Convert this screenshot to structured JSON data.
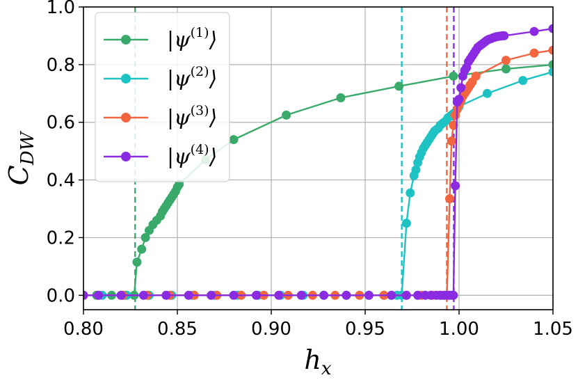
{
  "chart_data": {
    "type": "line",
    "xlabel": {
      "main": "h",
      "sub": "x"
    },
    "ylabel": {
      "main": "C",
      "sub": "DW"
    },
    "xlim": [
      0.8,
      1.05
    ],
    "ylim": [
      -0.05,
      1.0
    ],
    "xticks": [
      0.8,
      0.85,
      0.9,
      0.95,
      1.0,
      1.05
    ],
    "xtick_labels": [
      "0.80",
      "0.85",
      "0.90",
      "0.95",
      "1.00",
      "1.05"
    ],
    "yticks": [
      0.0,
      0.2,
      0.4,
      0.6,
      0.8,
      1.0
    ],
    "ytick_labels": [
      "0.0",
      "0.2",
      "0.4",
      "0.6",
      "0.8",
      "1.0"
    ],
    "grid": true,
    "legend_position": "top-left",
    "series": [
      {
        "name": {
          "main": "|ψ",
          "sup": "(1)",
          "end": "⟩"
        },
        "color": "#3aaa6a",
        "critical_x": 0.8275,
        "x": [
          0.8,
          0.807,
          0.815,
          0.822,
          0.827,
          0.8285,
          0.831,
          0.833,
          0.835,
          0.837,
          0.839,
          0.841,
          0.842,
          0.843,
          0.844,
          0.845,
          0.846,
          0.847,
          0.848,
          0.849,
          0.85,
          0.851,
          0.865,
          0.88,
          0.908,
          0.937,
          0.968,
          0.997,
          1.025,
          1.05
        ],
        "y": [
          0.0,
          0.0,
          0.0,
          0.0,
          0.0,
          0.115,
          0.16,
          0.2,
          0.225,
          0.245,
          0.26,
          0.275,
          0.29,
          0.3,
          0.31,
          0.32,
          0.33,
          0.34,
          0.35,
          0.36,
          0.375,
          0.385,
          0.47,
          0.54,
          0.625,
          0.685,
          0.725,
          0.76,
          0.785,
          0.8
        ]
      },
      {
        "name": {
          "main": "|ψ",
          "sup": "(2)",
          "end": "⟩"
        },
        "color": "#1ec2c2",
        "critical_x": 0.9695,
        "x": [
          0.8,
          0.81,
          0.823,
          0.835,
          0.847,
          0.858,
          0.87,
          0.882,
          0.893,
          0.905,
          0.917,
          0.928,
          0.94,
          0.952,
          0.96,
          0.964,
          0.967,
          0.9695,
          0.972,
          0.974,
          0.976,
          0.977,
          0.978,
          0.979,
          0.98,
          0.981,
          0.982,
          0.983,
          0.984,
          0.985,
          0.986,
          0.987,
          0.988,
          0.989,
          0.99,
          0.991,
          0.992,
          0.993,
          0.994,
          0.995,
          0.996,
          0.997,
          0.998,
          1.0,
          1.015,
          1.034,
          1.05
        ],
        "y": [
          0.0,
          0.0,
          0.0,
          0.0,
          0.0,
          0.0,
          0.0,
          0.0,
          0.0,
          0.0,
          0.0,
          0.0,
          0.0,
          0.0,
          0.0,
          0.0,
          0.0,
          0.0,
          0.25,
          0.355,
          0.415,
          0.435,
          0.46,
          0.48,
          0.495,
          0.51,
          0.52,
          0.53,
          0.54,
          0.55,
          0.56,
          0.57,
          0.575,
          0.58,
          0.59,
          0.595,
          0.6,
          0.605,
          0.615,
          0.62,
          0.625,
          0.63,
          0.635,
          0.655,
          0.7,
          0.745,
          0.775
        ]
      },
      {
        "name": {
          "main": "|ψ",
          "sup": "(3)",
          "end": "⟩"
        },
        "color": "#f2653f",
        "critical_x": 0.9935,
        "x": [
          0.8,
          0.808,
          0.821,
          0.834,
          0.846,
          0.859,
          0.871,
          0.884,
          0.896,
          0.909,
          0.922,
          0.934,
          0.947,
          0.96,
          0.972,
          0.98,
          0.986,
          0.99,
          0.9935,
          0.995,
          0.996,
          0.997,
          0.998,
          0.999,
          1.0,
          1.001,
          1.002,
          1.003,
          1.004,
          1.005,
          1.006,
          1.007,
          1.009,
          1.025,
          1.04,
          1.05
        ],
        "y": [
          0.0,
          0.0,
          0.0,
          0.0,
          0.0,
          0.0,
          0.0,
          0.0,
          0.0,
          0.0,
          0.0,
          0.0,
          0.0,
          0.0,
          0.0,
          0.0,
          0.0,
          0.0,
          0.0,
          0.335,
          0.535,
          0.59,
          0.625,
          0.645,
          0.66,
          0.675,
          0.69,
          0.7,
          0.71,
          0.72,
          0.73,
          0.74,
          0.76,
          0.815,
          0.84,
          0.85
        ]
      },
      {
        "name": {
          "main": "|ψ",
          "sup": "(4)",
          "end": "⟩"
        },
        "color": "#8a2be2",
        "critical_x": 0.9972,
        "x": [
          0.8,
          0.808,
          0.82,
          0.832,
          0.844,
          0.856,
          0.868,
          0.88,
          0.892,
          0.904,
          0.916,
          0.928,
          0.94,
          0.952,
          0.964,
          0.972,
          0.978,
          0.982,
          0.985,
          0.988,
          0.99,
          0.992,
          0.994,
          0.995,
          0.996,
          0.997,
          0.998,
          0.999,
          1.0,
          1.001,
          1.002,
          1.003,
          1.004,
          1.005,
          1.006,
          1.007,
          1.008,
          1.009,
          1.01,
          1.011,
          1.012,
          1.013,
          1.014,
          1.015,
          1.016,
          1.017,
          1.018,
          1.019,
          1.02,
          1.021,
          1.022,
          1.023,
          1.024,
          1.04,
          1.05
        ],
        "y": [
          0.0,
          0.0,
          0.0,
          0.0,
          0.0,
          0.0,
          0.0,
          0.0,
          0.0,
          0.0,
          0.0,
          0.0,
          0.0,
          0.0,
          0.0,
          0.0,
          0.0,
          0.0,
          0.0,
          0.0,
          0.0,
          0.0,
          0.0,
          0.0,
          0.0,
          0.0,
          0.38,
          0.67,
          0.68,
          0.72,
          0.76,
          0.78,
          0.79,
          0.81,
          0.82,
          0.83,
          0.84,
          0.85,
          0.86,
          0.865,
          0.87,
          0.875,
          0.88,
          0.885,
          0.888,
          0.89,
          0.893,
          0.895,
          0.897,
          0.898,
          0.899,
          0.9,
          0.9,
          0.915,
          0.925
        ]
      }
    ]
  }
}
